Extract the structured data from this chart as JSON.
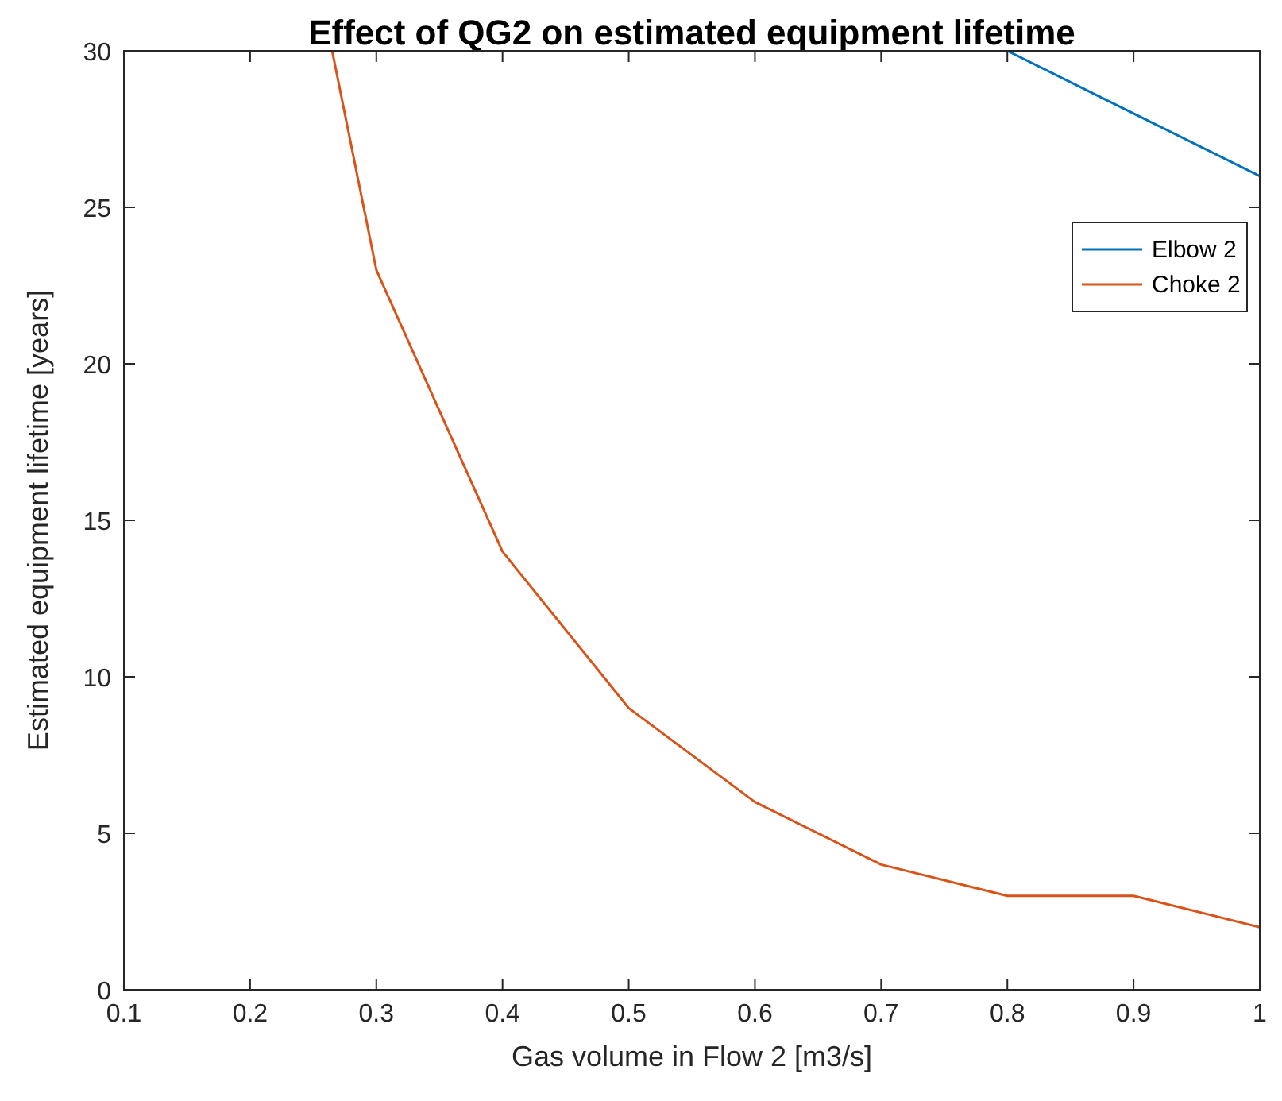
{
  "chart_data": {
    "type": "line",
    "title": "Effect of QG2 on estimated equipment lifetime",
    "xlabel": "Gas volume in Flow 2 [m3/s]",
    "ylabel": "Estimated equipment lifetime [years]",
    "xlim": [
      0.1,
      1
    ],
    "xticks": [
      0.1,
      0.2,
      0.3,
      0.4,
      0.5,
      0.6,
      0.7,
      0.8,
      0.9,
      1
    ],
    "ylim": [
      0,
      30
    ],
    "yticks": [
      0,
      5,
      10,
      15,
      20,
      25,
      30
    ],
    "grid": false,
    "legend": "top right",
    "line_style": "solid",
    "marker": "none",
    "series": [
      {
        "name": "Elbow 2",
        "color": "#0072bd",
        "x": [
          0.8,
          0.9,
          1
        ],
        "values": [
          30,
          28,
          26
        ]
      },
      {
        "name": "Choke 2",
        "color": "#d95319",
        "x": [
          0.265,
          0.3,
          0.4,
          0.5,
          0.6,
          0.7,
          0.8,
          0.9,
          1
        ],
        "values": [
          30,
          23,
          14,
          9,
          6,
          4,
          3,
          3,
          2
        ]
      }
    ]
  }
}
